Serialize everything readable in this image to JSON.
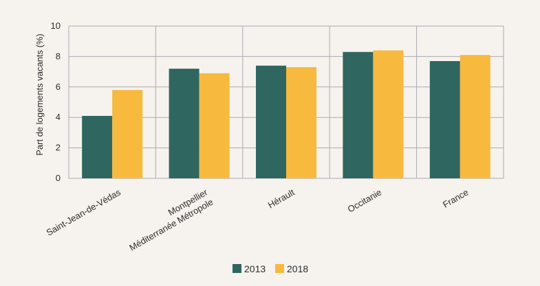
{
  "chart_data": {
    "type": "bar",
    "title": "",
    "xlabel": "",
    "ylabel": "Part de logements vacants (%)",
    "ylim": [
      0,
      10
    ],
    "yticks": [
      0,
      2,
      4,
      6,
      8,
      10
    ],
    "grid": true,
    "legend_position": "bottom",
    "categories": [
      [
        "Saint-Jean-de-Védas"
      ],
      [
        "Montpellier",
        "Méditerranée Métropole"
      ],
      [
        "Hérault"
      ],
      [
        "Occitanie"
      ],
      [
        "France"
      ]
    ],
    "series": [
      {
        "name": "2013",
        "color": "#2f6660",
        "values": [
          4.1,
          7.2,
          7.4,
          8.3,
          7.7
        ]
      },
      {
        "name": "2018",
        "color": "#f7b93e",
        "values": [
          5.8,
          6.9,
          7.3,
          8.4,
          8.1
        ]
      }
    ]
  }
}
